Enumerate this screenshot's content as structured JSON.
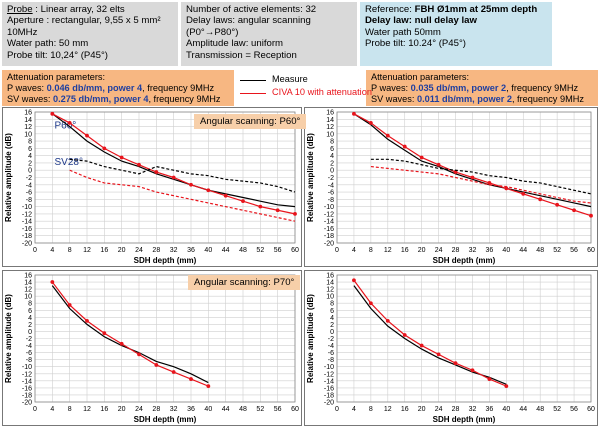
{
  "probe_box": {
    "line1_label": "Probe",
    "line1_value": " : Linear array, 32 elts",
    "line2": "Aperture : rectangular, 9,55 x 5 mm²",
    "line3": "10MHz",
    "line4": "Water path: 50 mm",
    "line5": "Probe tilt: 10,24° (P45°)"
  },
  "laws_box": {
    "line1": "Number of active elements: 32",
    "line2": "Delay laws: angular scanning",
    "line3": "(P0°→P80°)",
    "line4": "Amplitude law: uniform",
    "line5": "Transmission = Reception"
  },
  "ref_box": {
    "line1_a": "Reference: ",
    "line1_b": "FBH Ø1mm at 25mm  depth",
    "line2": "Delay law: null delay law",
    "line3": "Water path 50mm",
    "line4": "Probe tilt: 10.24° (P45°)"
  },
  "atten_left": {
    "title": "Attenuation parameters:",
    "p_a": "P waves: ",
    "p_b": "0.046 db/mm, power 4",
    "p_c": ", frequency 9MHz",
    "sv_a": "SV waves: ",
    "sv_b": "0.275 db/mm, power 4",
    "sv_c": ", frequency 9MHz"
  },
  "atten_right": {
    "title": "Attenuation parameters:",
    "p_a": "P waves: ",
    "p_b": "0.035 db/mm, power 2",
    "p_c": ", frequency 9MHz",
    "sv_a": "SV waves: ",
    "sv_b": "0.011 db/mm, power 2",
    "sv_c": ", frequency 9MHz"
  },
  "legend": {
    "items": [
      {
        "label": "Measure",
        "color": "#000000"
      },
      {
        "label": "CIVA 10 with attenuation",
        "color": "#e8141c"
      }
    ]
  },
  "annotations": {
    "p60": "Angular scanning: P60°",
    "p70": "Angular scanning: P70°"
  },
  "chart_data": [
    {
      "type": "line",
      "xlabel": "SDH depth (mm)",
      "ylabel": "Relative amplitude (dB)",
      "xlim": [
        0,
        60
      ],
      "ylim": [
        -20,
        16
      ],
      "xticks": [
        0,
        4,
        8,
        12,
        16,
        20,
        24,
        28,
        32,
        36,
        40,
        44,
        48,
        52,
        56,
        60
      ],
      "yticks": [
        16,
        14,
        12,
        10,
        8,
        6,
        4,
        2,
        0,
        -2,
        -4,
        -6,
        -8,
        -10,
        -12,
        -14,
        -16,
        -18,
        -20
      ],
      "grid": true,
      "labels": [
        {
          "text": "P60°",
          "x": 4.5,
          "y": 11.5
        },
        {
          "text": "SV28°",
          "x": 4.5,
          "y": 1.5
        }
      ],
      "series": [
        {
          "style": "measure-solid",
          "x": [
            4,
            8,
            12,
            16,
            20,
            24,
            28,
            32,
            36,
            40,
            44,
            48,
            52,
            56,
            60
          ],
          "y": [
            15.5,
            12,
            8,
            5,
            2.5,
            1,
            -1,
            -2.5,
            -4,
            -5.5,
            -6.5,
            -7.5,
            -8.5,
            -9.5,
            -10
          ]
        },
        {
          "style": "sim-solid",
          "x": [
            4,
            8,
            12,
            16,
            20,
            24,
            28,
            32,
            36,
            40,
            44,
            48,
            52,
            56,
            60
          ],
          "y": [
            15.5,
            13,
            9.5,
            6,
            3.5,
            1.5,
            -0.5,
            -2,
            -4,
            -5.5,
            -7,
            -8.5,
            -10,
            -11,
            -12
          ]
        },
        {
          "style": "measure-dashed",
          "x": [
            8,
            12,
            16,
            20,
            24,
            28,
            32,
            36,
            40,
            44,
            48,
            52,
            56,
            60
          ],
          "y": [
            3,
            2.5,
            1,
            0,
            -1,
            1,
            0,
            -1,
            -1.5,
            -2.5,
            -3,
            -3.5,
            -4.5,
            -6
          ]
        },
        {
          "style": "sim-dashed",
          "x": [
            8,
            12,
            16,
            20,
            24,
            28,
            32,
            36,
            40,
            44,
            48,
            52,
            56,
            60
          ],
          "y": [
            0,
            -2,
            -3.5,
            -4,
            -4.5,
            -6,
            -7,
            -8,
            -9,
            -10,
            -11,
            -12,
            -13,
            -14
          ]
        }
      ]
    },
    {
      "type": "line",
      "xlabel": "SDH depth (mm)",
      "ylabel": "Relative amplitude (dB)",
      "xlim": [
        0,
        60
      ],
      "ylim": [
        -20,
        16
      ],
      "xticks": [
        0,
        4,
        8,
        12,
        16,
        20,
        24,
        28,
        32,
        36,
        40,
        44,
        48,
        52,
        56,
        60
      ],
      "yticks": [
        16,
        14,
        12,
        10,
        8,
        6,
        4,
        2,
        0,
        -2,
        -4,
        -6,
        -8,
        -10,
        -12,
        -14,
        -16,
        -18,
        -20
      ],
      "grid": true,
      "labels": [],
      "series": [
        {
          "style": "measure-solid",
          "x": [
            4,
            8,
            12,
            16,
            20,
            24,
            28,
            32,
            36,
            40,
            44,
            48,
            52,
            56,
            60
          ],
          "y": [
            15.5,
            12.5,
            8.5,
            5.5,
            2.5,
            1,
            -1,
            -2.5,
            -4,
            -5,
            -6,
            -7,
            -8,
            -9,
            -10
          ]
        },
        {
          "style": "sim-solid",
          "x": [
            4,
            8,
            12,
            16,
            20,
            24,
            28,
            32,
            36,
            40,
            44,
            48,
            52,
            56,
            60
          ],
          "y": [
            15.5,
            13,
            9.5,
            6.5,
            3.5,
            1.5,
            -0.5,
            -2,
            -3.5,
            -5,
            -6.5,
            -8,
            -9.5,
            -11,
            -12.5
          ]
        },
        {
          "style": "measure-dashed",
          "x": [
            8,
            12,
            16,
            20,
            24,
            28,
            32,
            36,
            40,
            44,
            48,
            52,
            56,
            60
          ],
          "y": [
            3,
            3,
            2.5,
            1.5,
            0.5,
            0,
            -0.5,
            -1.5,
            -2,
            -3,
            -3.5,
            -4.5,
            -5.5,
            -6.5
          ]
        },
        {
          "style": "sim-dashed",
          "x": [
            8,
            12,
            16,
            20,
            24,
            28,
            32,
            36,
            40,
            44,
            48,
            52,
            56,
            60
          ],
          "y": [
            1,
            0.5,
            0,
            -0.5,
            -1,
            -2,
            -3,
            -4,
            -4.5,
            -5.5,
            -6.5,
            -7.5,
            -8.5,
            -9
          ]
        }
      ]
    },
    {
      "type": "line",
      "xlabel": "SDH depth (mm)",
      "ylabel": "Relative amplitude (dB)",
      "xlim": [
        0,
        60
      ],
      "ylim": [
        -20,
        16
      ],
      "xticks": [
        0,
        4,
        8,
        12,
        16,
        20,
        24,
        28,
        32,
        36,
        40,
        44,
        48,
        52,
        56,
        60
      ],
      "yticks": [
        16,
        14,
        12,
        10,
        8,
        6,
        4,
        2,
        0,
        -2,
        -4,
        -6,
        -8,
        -10,
        -12,
        -14,
        -16,
        -18,
        -20
      ],
      "grid": true,
      "labels": [],
      "series": [
        {
          "style": "measure-solid",
          "x": [
            4,
            8,
            12,
            16,
            20,
            24,
            28,
            32,
            36,
            40
          ],
          "y": [
            13,
            6.5,
            2,
            -1.5,
            -4,
            -6,
            -8.5,
            -10,
            -12,
            -14.5
          ]
        },
        {
          "style": "sim-solid",
          "x": [
            4,
            8,
            12,
            16,
            20,
            24,
            28,
            32,
            36,
            40
          ],
          "y": [
            14,
            7.5,
            3,
            -0.5,
            -3.5,
            -6.5,
            -9.5,
            -11.5,
            -13.5,
            -15.5
          ]
        }
      ]
    },
    {
      "type": "line",
      "xlabel": "SDH depth (mm)",
      "ylabel": "Relative amplitude (dB)",
      "xlim": [
        0,
        60
      ],
      "ylim": [
        -20,
        16
      ],
      "xticks": [
        0,
        4,
        8,
        12,
        16,
        20,
        24,
        28,
        32,
        36,
        40,
        44,
        48,
        52,
        56,
        60
      ],
      "yticks": [
        16,
        14,
        12,
        10,
        8,
        6,
        4,
        2,
        0,
        -2,
        -4,
        -6,
        -8,
        -10,
        -12,
        -14,
        -16,
        -18,
        -20
      ],
      "grid": true,
      "labels": [],
      "series": [
        {
          "style": "measure-solid",
          "x": [
            4,
            8,
            12,
            16,
            20,
            24,
            28,
            32,
            36,
            40
          ],
          "y": [
            13,
            6.5,
            1.5,
            -2,
            -5,
            -7.5,
            -9.5,
            -11.5,
            -13,
            -15
          ]
        },
        {
          "style": "sim-solid",
          "x": [
            4,
            8,
            12,
            16,
            20,
            24,
            28,
            32,
            36,
            40
          ],
          "y": [
            14.5,
            8,
            3,
            -1,
            -4,
            -6.5,
            -9,
            -11,
            -13.5,
            -15.5
          ]
        }
      ]
    }
  ]
}
